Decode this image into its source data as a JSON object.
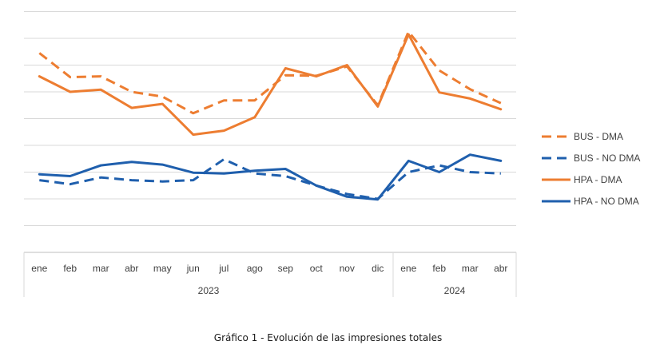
{
  "caption": "Gráfico 1 - Evolución de las impresiones totales",
  "chart_data": {
    "type": "line",
    "title": "",
    "xlabel": "",
    "ylabel": "",
    "grid": true,
    "ylim": [
      0,
      9
    ],
    "legend_position": "right",
    "categories": [
      "ene",
      "feb",
      "mar",
      "abr",
      "may",
      "jun",
      "jul",
      "ago",
      "sep",
      "oct",
      "nov",
      "dic",
      "ene",
      "feb",
      "mar",
      "abr"
    ],
    "year_groups": [
      {
        "label": "2023",
        "count": 12
      },
      {
        "label": "2024",
        "count": 4
      }
    ],
    "series": [
      {
        "name": "BUS - DMA",
        "color": "#ED7D31",
        "dash": true,
        "values": [
          7.45,
          6.55,
          6.58,
          6.0,
          5.82,
          5.2,
          5.68,
          5.68,
          6.62,
          6.6,
          6.95,
          5.5,
          8.25,
          6.8,
          6.1,
          5.58
        ]
      },
      {
        "name": "BUS - NO DMA",
        "color": "#1F5FAD",
        "dash": true,
        "values": [
          2.7,
          2.55,
          2.8,
          2.7,
          2.65,
          2.7,
          3.48,
          2.95,
          2.85,
          2.5,
          2.18,
          2.0,
          3.0,
          3.25,
          3.0,
          2.95
        ]
      },
      {
        "name": "HPA - DMA",
        "color": "#ED7D31",
        "dash": false,
        "values": [
          6.58,
          6.0,
          6.08,
          5.4,
          5.55,
          4.4,
          4.55,
          5.05,
          6.88,
          6.58,
          7.0,
          5.45,
          8.15,
          5.98,
          5.75,
          5.35
        ]
      },
      {
        "name": "HPA - NO DMA",
        "color": "#1F5FAD",
        "dash": false,
        "values": [
          2.92,
          2.85,
          3.25,
          3.38,
          3.28,
          2.98,
          2.95,
          3.05,
          3.12,
          2.5,
          2.08,
          1.98,
          3.42,
          3.0,
          3.65,
          3.42
        ]
      }
    ]
  }
}
